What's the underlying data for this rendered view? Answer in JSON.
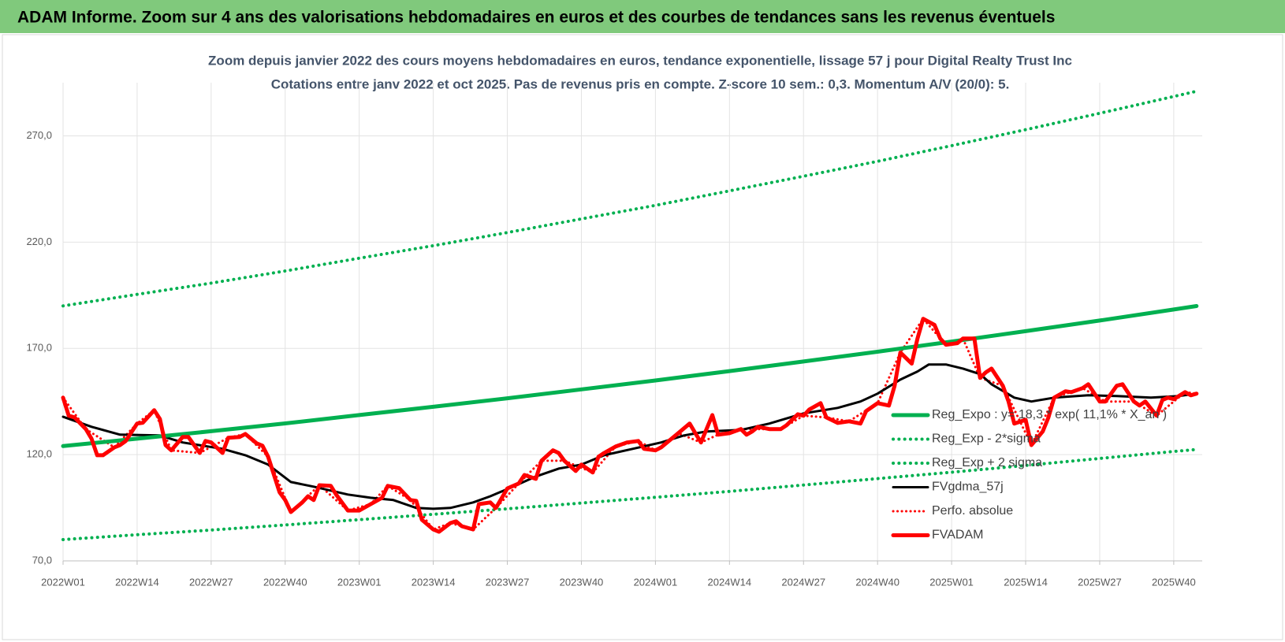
{
  "header": {
    "title": "ADAM Informe. Zoom sur 4 ans des valorisations hebdomadaires en euros et des courbes de tendances sans les revenus éventuels"
  },
  "chart_data": {
    "type": "line",
    "title": "Zoom depuis janvier 2022 des cours moyens hebdomadaires en euros, tendance exponentielle, lissage 57 j pour Digital Realty Trust Inc",
    "subtitle": "Cotations entre janv 2022 et oct 2025. Pas de revenus pris en compte. Z-score 10 sem.: 0,3. Momentum A/V (20/0): 5.",
    "xlim": [
      0,
      200
    ],
    "xticks": [
      {
        "value": 0,
        "label": "2022W01"
      },
      {
        "value": 13,
        "label": "2022W14"
      },
      {
        "value": 26,
        "label": "2022W27"
      },
      {
        "value": 39,
        "label": "2022W40"
      },
      {
        "value": 52,
        "label": "2023W01"
      },
      {
        "value": 65,
        "label": "2023W14"
      },
      {
        "value": 78,
        "label": "2023W27"
      },
      {
        "value": 91,
        "label": "2023W40"
      },
      {
        "value": 104,
        "label": "2024W01"
      },
      {
        "value": 117,
        "label": "2024W14"
      },
      {
        "value": 130,
        "label": "2024W27"
      },
      {
        "value": 143,
        "label": "2024W40"
      },
      {
        "value": 156,
        "label": "2025W01"
      },
      {
        "value": 169,
        "label": "2025W14"
      },
      {
        "value": 182,
        "label": "2025W27"
      },
      {
        "value": 195,
        "label": "2025W40"
      }
    ],
    "ylim": [
      70,
      295
    ],
    "yticks": [
      {
        "value": 70,
        "label": "70,0"
      },
      {
        "value": 120,
        "label": "120,0"
      },
      {
        "value": 170,
        "label": "170,0"
      },
      {
        "value": 220,
        "label": "220,0"
      },
      {
        "value": 270,
        "label": "270,0"
      }
    ],
    "grid": true,
    "legend": "right",
    "series": [
      {
        "name": "Reg_Expo : y= 18,3 * exp( 11,1% *  X_an )",
        "color": "#00b050",
        "line_style": "solid",
        "line_width": 5,
        "x": [
          0,
          13,
          26,
          39,
          52,
          65,
          78,
          91,
          104,
          117,
          130,
          143,
          156,
          169,
          182,
          195,
          199
        ],
        "values": [
          124,
          127.5,
          131,
          134.7,
          138.6,
          142.5,
          146.5,
          150.7,
          154.9,
          159.3,
          163.8,
          168.4,
          173.2,
          178.1,
          183.1,
          188.3,
          189.9
        ]
      },
      {
        "name": "Reg_Exp - 2*sigma",
        "color": "#00b050",
        "line_style": "dotted",
        "line_width": 4,
        "x": [
          0,
          13,
          26,
          39,
          52,
          65,
          78,
          91,
          104,
          117,
          130,
          143,
          156,
          169,
          182,
          195,
          199
        ],
        "values": [
          80,
          82.3,
          84.5,
          86.9,
          89.4,
          91.9,
          94.5,
          97.2,
          99.9,
          102.7,
          105.7,
          108.7,
          111.7,
          114.9,
          118.2,
          121.5,
          122.4
        ]
      },
      {
        "name": "Reg_Exp + 2 sigma",
        "color": "#00b050",
        "line_style": "dotted",
        "line_width": 4,
        "x": [
          0,
          13,
          26,
          39,
          52,
          65,
          78,
          91,
          104,
          117,
          130,
          143,
          156,
          169,
          182,
          195,
          199
        ],
        "values": [
          190,
          195.4,
          200.7,
          206.4,
          212.4,
          218.3,
          224.5,
          230.9,
          237.3,
          244.1,
          251,
          258,
          265.4,
          272.9,
          280.6,
          288.5,
          291
        ]
      },
      {
        "name": "FVgdma_57j",
        "color": "#000000",
        "line_style": "solid",
        "line_width": 3,
        "x": [
          0,
          5,
          10,
          17,
          21,
          28,
          32,
          36,
          40,
          44,
          50,
          54,
          58,
          62,
          65,
          68,
          72,
          75,
          79,
          83,
          87,
          91,
          95,
          100,
          105,
          109,
          113,
          119,
          124,
          130,
          136,
          140,
          143,
          147,
          150,
          152,
          155,
          158,
          161,
          163,
          167,
          170,
          174,
          180,
          185,
          191,
          196,
          199
        ],
        "values": [
          137.8,
          133.1,
          129.4,
          129,
          125.7,
          122.7,
          119.7,
          115.3,
          107.1,
          104.9,
          101.2,
          99.7,
          98.6,
          94.9,
          94.5,
          94.9,
          97.5,
          100.4,
          104.9,
          109.7,
          113.4,
          115.3,
          119.7,
          122.7,
          125.7,
          129,
          130.9,
          131.6,
          134.6,
          139.4,
          142,
          145,
          148.7,
          155.3,
          159.1,
          162.4,
          162.4,
          160.5,
          157.9,
          153.1,
          146.8,
          145,
          146.8,
          147.9,
          147.6,
          146.8,
          147.6,
          148.7
        ]
      },
      {
        "name": "Perfo. absolue",
        "color": "#ff0000",
        "line_style": "dotted",
        "line_width": 3,
        "x": [
          0,
          4,
          9,
          13,
          16,
          19,
          24,
          29,
          32,
          36,
          40,
          45,
          50,
          54,
          57,
          61,
          65,
          68,
          72,
          76,
          80,
          84,
          88,
          93,
          97,
          101,
          104,
          108,
          112,
          115,
          119,
          126,
          130,
          134,
          138,
          143,
          147,
          151,
          155,
          158,
          161,
          165,
          170,
          174,
          179,
          183,
          188,
          192,
          197,
          199
        ],
        "values": [
          146.8,
          132,
          123.4,
          134.6,
          140.9,
          122,
          120.8,
          127.9,
          129.7,
          119,
          93,
          105.6,
          93.7,
          96.7,
          105.3,
          98.6,
          84.8,
          87.8,
          84.8,
          94.9,
          106.4,
          117.1,
          117.1,
          111.6,
          123.8,
          126.4,
          122,
          130.1,
          125.7,
          129.4,
          132,
          132,
          138.3,
          137.5,
          135.7,
          144.2,
          168,
          183.9,
          171.7,
          174.6,
          156.1,
          152.4,
          124.5,
          146.8,
          151.3,
          145,
          145,
          138.3,
          149.4,
          148.7
        ]
      },
      {
        "name": "FVADAM",
        "color": "#ff0000",
        "line_style": "solid",
        "line_width": 5,
        "x": [
          0,
          1,
          2,
          4,
          5,
          6,
          7,
          9,
          10,
          11,
          13,
          14,
          16,
          17,
          18,
          19,
          21,
          22,
          23,
          24,
          25,
          26,
          28,
          29,
          31,
          32,
          34,
          35,
          36,
          38,
          39,
          40,
          42,
          43,
          44,
          45,
          47,
          48,
          50,
          52,
          54,
          56,
          57,
          59,
          61,
          62,
          63,
          65,
          66,
          68,
          69,
          70,
          72,
          73,
          75,
          76,
          78,
          80,
          81,
          83,
          84,
          86,
          87,
          88,
          90,
          91,
          93,
          94,
          95,
          97,
          99,
          101,
          102,
          104,
          105,
          108,
          110,
          111,
          112,
          114,
          115,
          117,
          119,
          120,
          121,
          122,
          124,
          126,
          127,
          129,
          130,
          131,
          133,
          134,
          136,
          138,
          140,
          141,
          143,
          145,
          146,
          147,
          149,
          150,
          151,
          153,
          154,
          155,
          157,
          158,
          160,
          161,
          162,
          163,
          165,
          166,
          167,
          169,
          170,
          172,
          173,
          174,
          176,
          177,
          179,
          180,
          182,
          183,
          185,
          186,
          188,
          189,
          190,
          192,
          193,
          194,
          195,
          197,
          198,
          199
        ],
        "values": [
          146.8,
          138.3,
          137.5,
          132,
          127.5,
          119.7,
          119.7,
          123.4,
          124.5,
          126.4,
          134.6,
          135,
          140.9,
          136.8,
          124.5,
          122,
          128.3,
          128.3,
          124.5,
          120.8,
          126.4,
          125.7,
          120.8,
          127.9,
          128.3,
          129.7,
          125.3,
          124.2,
          119,
          102.3,
          98.6,
          93,
          97.5,
          100.4,
          98.6,
          105.6,
          105.3,
          101,
          93.7,
          93.7,
          96.7,
          99.7,
          105.3,
          104.2,
          98.6,
          98.2,
          89.3,
          84.8,
          83.7,
          87.8,
          88.6,
          86.3,
          84.8,
          96.7,
          97.5,
          94.9,
          104.1,
          106.4,
          110.4,
          108.6,
          117.1,
          122,
          120.8,
          117.1,
          112.3,
          115.3,
          111.6,
          119,
          120.8,
          123.8,
          125.7,
          126.4,
          122.7,
          122,
          123.4,
          130.1,
          134.6,
          130.1,
          125.7,
          138.6,
          129.4,
          130.1,
          132,
          129.4,
          130.9,
          133.1,
          132,
          132,
          133.8,
          139,
          138.3,
          141.2,
          144.2,
          137.5,
          134.9,
          135.7,
          134.6,
          140.5,
          144.2,
          143.1,
          152.4,
          168,
          162.8,
          174.6,
          183.9,
          181,
          174.6,
          171.7,
          172.4,
          174.6,
          174.6,
          156.1,
          158.7,
          160.5,
          152.4,
          145,
          134.6,
          136.4,
          124.5,
          130.9,
          137.5,
          146.8,
          149.8,
          149.4,
          151.3,
          153.1,
          145,
          145,
          152.4,
          153.1,
          145,
          143.1,
          145,
          138.3,
          145.7,
          146.8,
          146.1,
          149.4,
          147.9,
          148.7
        ]
      }
    ]
  }
}
